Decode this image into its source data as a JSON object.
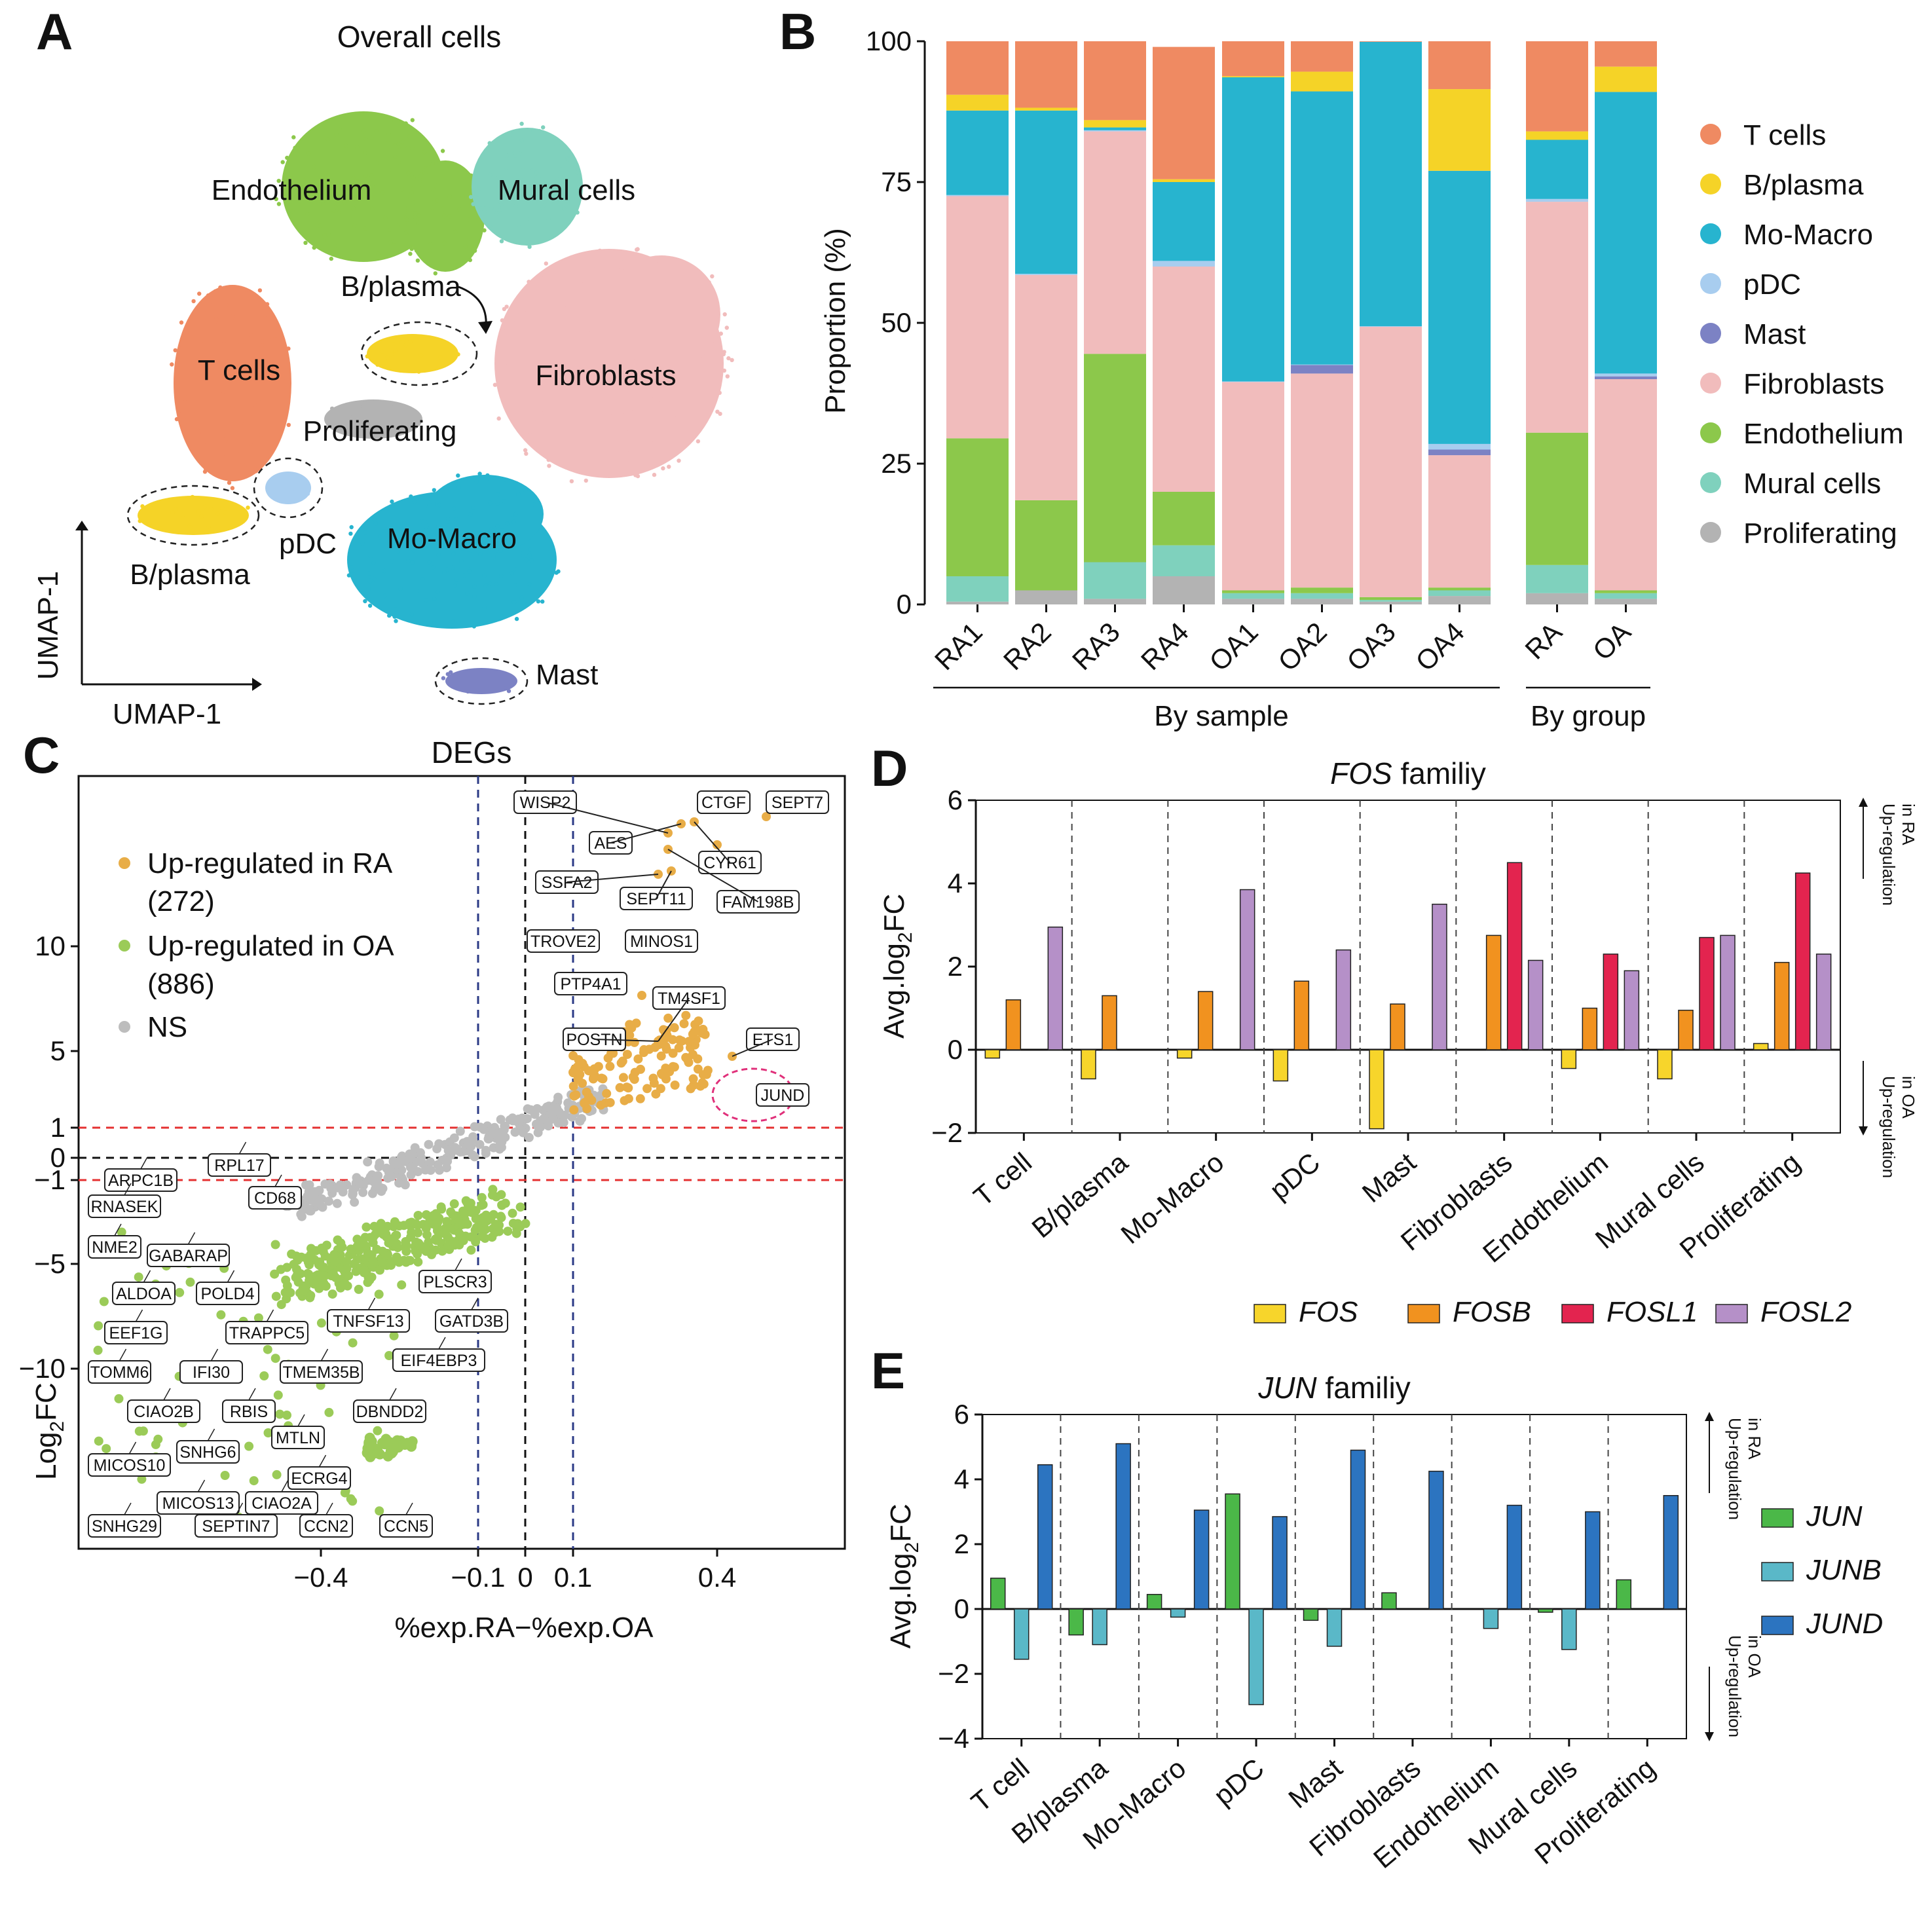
{
  "panel_letters": [
    "A",
    "B",
    "C",
    "D",
    "E"
  ],
  "colors": {
    "T cells": "#ef8a62",
    "B/plasma": "#f5d327",
    "Mo-Macro": "#27b4cf",
    "pDC": "#a8cdef",
    "Mast": "#7c82c4",
    "Fibroblasts": "#f1bcbc",
    "Endothelium": "#8cc84b",
    "Mural cells": "#7fd1bd",
    "Proliferating": "#b3b3b3",
    "up_ra": "#e8ad47",
    "up_oa": "#9bcb58",
    "ns": "#bdbdbd",
    "fos": "#f7d52b",
    "fosb": "#f1921f",
    "fosl1": "#e3244f",
    "fosl2": "#b590c8",
    "jun": "#4bb848",
    "junb": "#5ab8c8",
    "jund": "#2c74c0"
  },
  "chart_data": [
    {
      "panel": "A",
      "type": "scatter",
      "title": "Overall cells",
      "xlabel": "UMAP-1",
      "ylabel": "UMAP-1",
      "cluster_labels": [
        "Endothelium",
        "Mural cells",
        "B/plasma",
        "T cells",
        "Fibroblasts",
        "Proliferating",
        "pDC",
        "Mo-Macro",
        "B/plasma",
        "Mast"
      ]
    },
    {
      "panel": "B",
      "type": "bar",
      "stacked": true,
      "ylabel": "Proportion (%)",
      "ylim": [
        0,
        100
      ],
      "yticks": [
        "0",
        "25",
        "50",
        "75",
        "100"
      ],
      "groups": [
        {
          "label": "By sample",
          "categories": [
            "RA1",
            "RA2",
            "RA3",
            "RA4",
            "OA1",
            "OA2",
            "OA3",
            "OA4"
          ]
        },
        {
          "label": "By group",
          "categories": [
            "RA",
            "OA"
          ]
        }
      ],
      "categories": [
        "RA1",
        "RA2",
        "RA3",
        "RA4",
        "OA1",
        "OA2",
        "OA3",
        "OA4",
        "RA",
        "OA"
      ],
      "series": [
        {
          "name": "Proliferating",
          "values": [
            0.5,
            2.5,
            1,
            5,
            1,
            1,
            0.5,
            1.5,
            2,
            1
          ]
        },
        {
          "name": "Mural cells",
          "values": [
            4.5,
            0,
            6.5,
            5.5,
            1,
            1,
            0.3,
            1,
            5,
            1
          ]
        },
        {
          "name": "Endothelium",
          "values": [
            24.5,
            16,
            37,
            9.5,
            0.5,
            1,
            0.5,
            0.5,
            23.5,
            0.5
          ]
        },
        {
          "name": "Fibroblasts",
          "values": [
            43,
            40,
            39.5,
            40,
            37,
            38,
            48,
            23.5,
            41,
            37.5
          ]
        },
        {
          "name": "Mast",
          "values": [
            0,
            0,
            0,
            0,
            0,
            1.5,
            0,
            1,
            0,
            0.5
          ]
        },
        {
          "name": "pDC",
          "values": [
            0.2,
            0.2,
            0.2,
            1,
            0.1,
            0.1,
            0.1,
            1,
            0.5,
            0.5
          ]
        },
        {
          "name": "Mo-Macro",
          "values": [
            15,
            29,
            0.5,
            14,
            54,
            48.5,
            50.5,
            48.5,
            10.5,
            50
          ]
        },
        {
          "name": "B/plasma",
          "values": [
            2.8,
            0.5,
            1.3,
            0.5,
            0.2,
            3.5,
            0,
            14.5,
            1.5,
            4.5
          ]
        },
        {
          "name": "T cells",
          "values": [
            9.5,
            11.8,
            14,
            23.5,
            6.2,
            5.4,
            0.1,
            8.5,
            16,
            4.5
          ]
        }
      ],
      "legend": [
        "T cells",
        "B/plasma",
        "Mo-Macro",
        "pDC",
        "Mast",
        "Fibroblasts",
        "Endothelium",
        "Mural cells",
        "Proliferating"
      ],
      "legend_position": "right"
    },
    {
      "panel": "C",
      "type": "scatter",
      "title": "DEGs",
      "xlabel": "%exp.RA−%exp.OA",
      "ylabel": "Log2FC",
      "xticks": [
        "−0.4",
        "−0.1",
        "0",
        "0.1",
        "0.4"
      ],
      "yticks": [
        "10",
        "5",
        "1",
        "0",
        "−1",
        "−5",
        "−10"
      ],
      "legend": [
        {
          "label": "Up-regulated in RA",
          "count": "(272)"
        },
        {
          "label": "Up-regulated in OA",
          "count": "(886)"
        },
        {
          "label": "NS",
          "count": ""
        }
      ],
      "labels_up": [
        "WISP2",
        "CTGF",
        "SEPT7",
        "AES",
        "CYR61",
        "SSFA2",
        "SEPT11",
        "FAM198B",
        "TROVE2",
        "MINOS1",
        "PTP4A1",
        "TM4SF1",
        "POSTN",
        "ETS1",
        "JUND"
      ],
      "labels_down": [
        "ARPC1B",
        "RPL17",
        "RNASEK",
        "CD68",
        "NME2",
        "GABARAP",
        "ALDOA",
        "POLD4",
        "PLSCR3",
        "EEF1G",
        "TRAPPC5",
        "TNFSF13",
        "GATD3B",
        "EIF4EBP3",
        "TOMM6",
        "IFI30",
        "TMEM35B",
        "CIAO2B",
        "RBIS",
        "DBNDD2",
        "MTLN",
        "MICOS10",
        "SNHG6",
        "ECRG4",
        "MICOS13",
        "CIAO2A",
        "SNHG29",
        "SEPTIN7",
        "CCN2",
        "CCN5"
      ]
    },
    {
      "panel": "D",
      "type": "bar",
      "title_gene": "FOS",
      "title_rest": " familiy",
      "ylabel": "Avg.log2FC",
      "ylim": [
        -2,
        6
      ],
      "yticks": [
        "−2",
        "0",
        "2",
        "4",
        "6"
      ],
      "categories": [
        "T cell",
        "B/plasma",
        "Mo-Macro",
        "pDC",
        "Mast",
        "Fibroblasts",
        "Endothelium",
        "Mural cells",
        "Proliferating"
      ],
      "series": [
        {
          "name": "FOS",
          "values": [
            -0.2,
            -0.7,
            -0.2,
            -0.75,
            -1.9,
            0,
            -0.45,
            -0.7,
            0.15
          ]
        },
        {
          "name": "FOSB",
          "values": [
            1.2,
            1.3,
            1.4,
            1.65,
            1.1,
            2.75,
            1.0,
            0.95,
            2.1
          ]
        },
        {
          "name": "FOSL1",
          "values": [
            0,
            0,
            0,
            0,
            0,
            4.5,
            2.3,
            2.7,
            4.25
          ]
        },
        {
          "name": "FOSL2",
          "values": [
            2.95,
            0,
            3.85,
            2.4,
            3.5,
            2.15,
            1.9,
            2.75,
            2.3
          ]
        }
      ],
      "side_top": [
        "Up-regulation",
        "in RA"
      ],
      "side_bottom": [
        "Up-regulation",
        "in OA"
      ],
      "legend_position": "bottom"
    },
    {
      "panel": "E",
      "type": "bar",
      "title_gene": "JUN",
      "title_rest": " familiy",
      "ylabel": "Avg.log2FC",
      "ylim": [
        -4,
        6
      ],
      "yticks": [
        "−4",
        "−2",
        "0",
        "2",
        "4",
        "6"
      ],
      "categories": [
        "T cell",
        "B/plasma",
        "Mo-Macro",
        "pDC",
        "Mast",
        "Fibroblasts",
        "Endothelium",
        "Mural cells",
        "Proliferating"
      ],
      "series": [
        {
          "name": "JUN",
          "values": [
            0.95,
            -0.8,
            0.45,
            3.55,
            -0.35,
            0.5,
            0,
            -0.1,
            0.9
          ]
        },
        {
          "name": "JUNB",
          "values": [
            -1.55,
            -1.1,
            -0.25,
            -2.95,
            -1.15,
            0,
            -0.6,
            -1.25,
            0
          ]
        },
        {
          "name": "JUND",
          "values": [
            4.45,
            5.1,
            3.05,
            2.85,
            4.9,
            4.25,
            3.2,
            3.0,
            3.5
          ]
        }
      ],
      "side_top": [
        "Up-regulation",
        "in RA"
      ],
      "side_bottom": [
        "Up-regulation",
        "in OA"
      ],
      "legend_position": "right"
    }
  ]
}
